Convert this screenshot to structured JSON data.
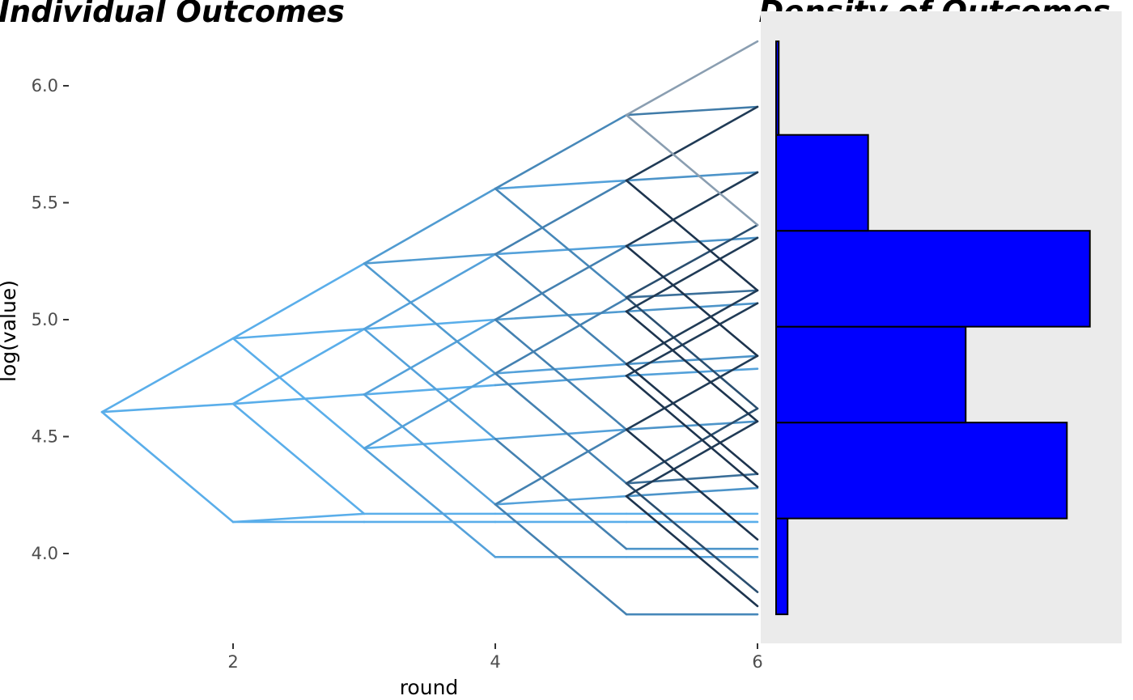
{
  "chart_data": [
    {
      "type": "line",
      "title": "Individual Outcomes",
      "xlabel": "round",
      "ylabel": "log(value)",
      "xlim": [
        1,
        6
      ],
      "ylim": [
        3.7,
        6.2
      ],
      "xticks": [
        "2",
        "4",
        "6"
      ],
      "yticks": [
        "4.0",
        "4.5",
        "5.0",
        "5.5",
        "6.0"
      ],
      "grid": false,
      "description": "Binomial-tree style paths of log(value) over rounds; each round the path steps up or down",
      "colors": {
        "light": "#5aaeea",
        "dark": "#1a2e46",
        "faded": "#8a9eb1"
      },
      "edges": [
        {
          "r": 1,
          "a": 4.605,
          "b": 4.92,
          "shade": 0.0
        },
        {
          "r": 1,
          "a": 4.605,
          "b": 4.64,
          "shade": 0.0
        },
        {
          "r": 1,
          "a": 4.605,
          "b": 4.135,
          "shade": 0.0
        },
        {
          "r": 2,
          "a": 4.92,
          "b": 5.24,
          "shade": 0.0
        },
        {
          "r": 2,
          "a": 4.92,
          "b": 4.96,
          "shade": 0.0
        },
        {
          "r": 2,
          "a": 4.92,
          "b": 4.45,
          "shade": 0.0
        },
        {
          "r": 2,
          "a": 4.64,
          "b": 4.96,
          "shade": 0.0
        },
        {
          "r": 2,
          "a": 4.64,
          "b": 4.68,
          "shade": 0.0
        },
        {
          "r": 2,
          "a": 4.64,
          "b": 4.17,
          "shade": 0.0
        },
        {
          "r": 2,
          "a": 4.135,
          "b": 4.17,
          "shade": 0.0
        },
        {
          "r": 3,
          "a": 5.24,
          "b": 5.56,
          "shade": 0.15
        },
        {
          "r": 3,
          "a": 5.24,
          "b": 5.28,
          "shade": 0.15
        },
        {
          "r": 3,
          "a": 5.24,
          "b": 4.77,
          "shade": 0.15
        },
        {
          "r": 3,
          "a": 4.96,
          "b": 5.28,
          "shade": 0.1
        },
        {
          "r": 3,
          "a": 4.96,
          "b": 5.0,
          "shade": 0.0
        },
        {
          "r": 3,
          "a": 4.96,
          "b": 4.49,
          "shade": 0.1
        },
        {
          "r": 3,
          "a": 4.68,
          "b": 5.0,
          "shade": 0.1
        },
        {
          "r": 3,
          "a": 4.68,
          "b": 4.72,
          "shade": 0.0
        },
        {
          "r": 3,
          "a": 4.68,
          "b": 4.21,
          "shade": 0.1
        },
        {
          "r": 3,
          "a": 4.45,
          "b": 4.77,
          "shade": 0.1
        },
        {
          "r": 3,
          "a": 4.45,
          "b": 4.49,
          "shade": 0.0
        },
        {
          "r": 3,
          "a": 4.45,
          "b": 3.985,
          "shade": 0.1
        },
        {
          "r": 3,
          "a": 4.17,
          "b": 4.17,
          "shade": 0.0
        },
        {
          "r": 4,
          "a": 5.56,
          "b": 5.875,
          "shade": 0.3
        },
        {
          "r": 4,
          "a": 5.56,
          "b": 5.595,
          "shade": 0.1
        },
        {
          "r": 4,
          "a": 5.56,
          "b": 5.095,
          "shade": 0.3
        },
        {
          "r": 4,
          "a": 5.28,
          "b": 5.595,
          "shade": 0.35
        },
        {
          "r": 4,
          "a": 5.28,
          "b": 5.315,
          "shade": 0.1
        },
        {
          "r": 4,
          "a": 5.28,
          "b": 4.81,
          "shade": 0.35
        },
        {
          "r": 4,
          "a": 5.0,
          "b": 5.315,
          "shade": 0.35
        },
        {
          "r": 4,
          "a": 5.0,
          "b": 5.035,
          "shade": 0.15
        },
        {
          "r": 4,
          "a": 5.0,
          "b": 4.53,
          "shade": 0.35
        },
        {
          "r": 4,
          "a": 4.77,
          "b": 5.09,
          "shade": 0.35
        },
        {
          "r": 4,
          "a": 4.77,
          "b": 4.81,
          "shade": 0.1
        },
        {
          "r": 4,
          "a": 4.77,
          "b": 4.3,
          "shade": 0.35
        },
        {
          "r": 4,
          "a": 4.72,
          "b": 4.76,
          "shade": 0.1
        },
        {
          "r": 4,
          "a": 4.49,
          "b": 4.53,
          "shade": 0.1
        },
        {
          "r": 4,
          "a": 4.49,
          "b": 4.02,
          "shade": 0.35
        },
        {
          "r": 4,
          "a": 4.21,
          "b": 4.53,
          "shade": 0.35
        },
        {
          "r": 4,
          "a": 4.21,
          "b": 4.245,
          "shade": 0.1
        },
        {
          "r": 4,
          "a": 4.21,
          "b": 3.74,
          "shade": 0.35
        },
        {
          "r": 4,
          "a": 3.985,
          "b": 3.985,
          "shade": 0.1
        },
        {
          "r": 5,
          "a": 5.875,
          "b": 6.19,
          "shade": 1.0,
          "faded": true
        },
        {
          "r": 5,
          "a": 5.875,
          "b": 5.91,
          "shade": 0.4
        },
        {
          "r": 5,
          "a": 5.875,
          "b": 5.405,
          "shade": 1.0,
          "faded": true
        },
        {
          "r": 5,
          "a": 5.595,
          "b": 5.91,
          "shade": 0.9
        },
        {
          "r": 5,
          "a": 5.595,
          "b": 5.63,
          "shade": 0.2
        },
        {
          "r": 5,
          "a": 5.595,
          "b": 5.125,
          "shade": 0.95
        },
        {
          "r": 5,
          "a": 5.315,
          "b": 5.63,
          "shade": 0.9
        },
        {
          "r": 5,
          "a": 5.315,
          "b": 5.35,
          "shade": 0.2
        },
        {
          "r": 5,
          "a": 5.315,
          "b": 4.845,
          "shade": 0.95
        },
        {
          "r": 5,
          "a": 5.095,
          "b": 5.405,
          "shade": 0.75
        },
        {
          "r": 5,
          "a": 5.095,
          "b": 5.125,
          "shade": 0.5
        },
        {
          "r": 5,
          "a": 5.095,
          "b": 4.62,
          "shade": 0.75
        },
        {
          "r": 5,
          "a": 5.035,
          "b": 5.35,
          "shade": 0.9
        },
        {
          "r": 5,
          "a": 5.035,
          "b": 5.07,
          "shade": 0.2
        },
        {
          "r": 5,
          "a": 5.035,
          "b": 4.565,
          "shade": 0.95
        },
        {
          "r": 5,
          "a": 4.81,
          "b": 5.125,
          "shade": 0.9
        },
        {
          "r": 5,
          "a": 4.81,
          "b": 4.845,
          "shade": 0.2
        },
        {
          "r": 5,
          "a": 4.81,
          "b": 4.34,
          "shade": 0.95
        },
        {
          "r": 5,
          "a": 4.76,
          "b": 5.07,
          "shade": 0.9
        },
        {
          "r": 5,
          "a": 4.76,
          "b": 4.79,
          "shade": 0.1
        },
        {
          "r": 5,
          "a": 4.76,
          "b": 4.285,
          "shade": 0.95
        },
        {
          "r": 5,
          "a": 4.53,
          "b": 4.845,
          "shade": 0.9
        },
        {
          "r": 5,
          "a": 4.53,
          "b": 4.565,
          "shade": 0.2
        },
        {
          "r": 5,
          "a": 4.53,
          "b": 4.06,
          "shade": 0.95
        },
        {
          "r": 5,
          "a": 4.3,
          "b": 4.62,
          "shade": 0.75
        },
        {
          "r": 5,
          "a": 4.3,
          "b": 4.34,
          "shade": 0.5
        },
        {
          "r": 5,
          "a": 4.3,
          "b": 3.835,
          "shade": 0.75
        },
        {
          "r": 5,
          "a": 4.245,
          "b": 4.565,
          "shade": 0.9
        },
        {
          "r": 5,
          "a": 4.245,
          "b": 4.28,
          "shade": 0.2
        },
        {
          "r": 5,
          "a": 4.245,
          "b": 3.775,
          "shade": 0.95
        },
        {
          "r": 5,
          "a": 4.02,
          "b": 4.02,
          "shade": 0.2
        },
        {
          "r": 5,
          "a": 3.985,
          "b": 3.985,
          "shade": 0.1
        },
        {
          "r": 5,
          "a": 3.74,
          "b": 3.74,
          "shade": 0.3
        },
        {
          "r": 4,
          "a": 4.17,
          "b": 4.17,
          "shade": 0.0
        },
        {
          "r": 5,
          "a": 4.17,
          "b": 4.17,
          "shade": 0.0
        },
        {
          "r": 3,
          "a": 4.135,
          "b": 4.135,
          "shade": 0.0
        },
        {
          "r": 4,
          "a": 4.135,
          "b": 4.135,
          "shade": 0.0
        },
        {
          "r": 5,
          "a": 4.135,
          "b": 4.135,
          "shade": 0.0
        },
        {
          "r": 2,
          "a": 4.135,
          "b": 4.135,
          "shade": 0.0
        }
      ]
    },
    {
      "type": "bar",
      "orientation": "horizontal",
      "title": "Density of Outcomes",
      "fill": "#0000ff",
      "stroke": "#000000",
      "panel_background": "#ebebeb",
      "ylim": [
        3.7,
        6.2
      ],
      "max_value": 1.0,
      "bins": [
        {
          "from": 3.74,
          "to": 4.15,
          "value": 0.035
        },
        {
          "from": 4.15,
          "to": 4.56,
          "value": 0.885
        },
        {
          "from": 4.56,
          "to": 4.97,
          "value": 0.577
        },
        {
          "from": 4.97,
          "to": 5.38,
          "value": 0.955
        },
        {
          "from": 5.38,
          "to": 5.79,
          "value": 0.28
        },
        {
          "from": 5.79,
          "to": 6.19,
          "value": 0.008
        }
      ]
    }
  ]
}
